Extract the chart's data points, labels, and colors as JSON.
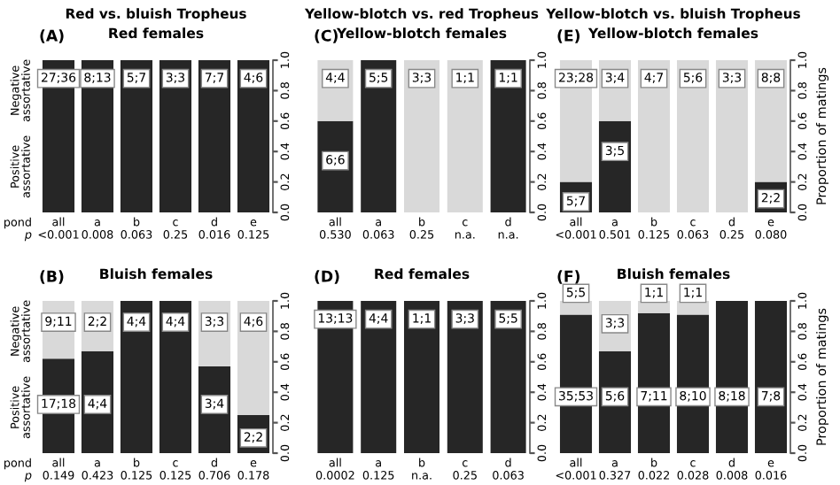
{
  "chart_data": [
    {
      "type": "bar",
      "stacked": true,
      "title": "Red vs. bluish Tropheus",
      "subtitle": "Red females",
      "categories": [
        "all",
        "a",
        "b",
        "c",
        "d",
        "e"
      ],
      "series": [
        {
          "color": "#262626",
          "values": [
            1,
            1,
            1,
            1,
            1,
            1
          ]
        },
        {
          "color": "#d9d9d9",
          "values": [
            0,
            0,
            0,
            0,
            0,
            0
          ]
        }
      ],
      "ylim": [
        0,
        1
      ],
      "yticks": [
        {
          "value": 0,
          "label": "0.0"
        },
        {
          "value": 0.2,
          "label": "0.2"
        },
        {
          "value": 0.4,
          "label": "0.4"
        },
        {
          "value": 0.6,
          "label": "0.6"
        },
        {
          "value": 0.8,
          "label": "0.8"
        },
        {
          "value": 1,
          "label": "1.0"
        }
      ],
      "annotations": [
        "(A)",
        "Negative\nassortative",
        "Positive\nassortative",
        "pond",
        "p",
        {
          "text": "27;36",
          "x": "all",
          "y": 0.88
        },
        {
          "text": "8;13",
          "x": "a",
          "y": 0.88
        },
        {
          "text": "5;7",
          "x": "b",
          "y": 0.88
        },
        {
          "text": "3;3",
          "x": "c",
          "y": 0.88
        },
        {
          "text": "7;7",
          "x": "d",
          "y": 0.88
        },
        {
          "text": "4;6",
          "x": "e",
          "y": 0.88
        },
        "<0.001",
        "0.008",
        "0.063",
        "0.25",
        "0.016",
        "0.125"
      ]
    },
    {
      "type": "bar",
      "stacked": true,
      "title": "Yellow-blotch vs. red Tropheus",
      "subtitle": "Yellow-blotch females",
      "categories": [
        "all",
        "a",
        "b",
        "c",
        "d"
      ],
      "series": [
        {
          "color": "#262626",
          "values": [
            0.6,
            1,
            0,
            0,
            1
          ]
        },
        {
          "color": "#d9d9d9",
          "values": [
            0.4,
            0,
            1,
            1,
            0
          ]
        }
      ],
      "ylim": [
        0,
        1
      ],
      "yticks": [
        {
          "value": 0,
          "label": "0.0"
        },
        {
          "value": 0.2,
          "label": "0.2"
        },
        {
          "value": 0.4,
          "label": "0.4"
        },
        {
          "value": 0.6,
          "label": "0.6"
        },
        {
          "value": 0.8,
          "label": "0.8"
        },
        {
          "value": 1,
          "label": "1.0"
        }
      ],
      "annotations": [
        "(C)",
        {
          "text": "4;4",
          "x": "all",
          "y": 0.88
        },
        {
          "text": "5;5",
          "x": "a",
          "y": 0.88
        },
        {
          "text": "3;3",
          "x": "b",
          "y": 0.88
        },
        {
          "text": "1;1",
          "x": "c",
          "y": 0.88
        },
        {
          "text": "1;1",
          "x": "d",
          "y": 0.88
        },
        {
          "text": "6;6",
          "x": "all",
          "y": 0.34
        },
        "0.530",
        "0.063",
        "0.25",
        "n.a.",
        "n.a."
      ]
    },
    {
      "type": "bar",
      "stacked": true,
      "title": "Yellow-blotch vs. bluish Tropheus",
      "subtitle": "Yellow-blotch females",
      "ylabel": "Proportion of matings",
      "categories": [
        "all",
        "a",
        "b",
        "c",
        "d",
        "e"
      ],
      "series": [
        {
          "color": "#262626",
          "values": [
            0.2,
            0.6,
            0,
            0,
            0,
            0.2
          ]
        },
        {
          "color": "#d9d9d9",
          "values": [
            0.8,
            0.4,
            1,
            1,
            1,
            0.8
          ]
        }
      ],
      "ylim": [
        0,
        1
      ],
      "yticks": [
        {
          "value": 0,
          "label": "0.0"
        },
        {
          "value": 0.2,
          "label": "0.2"
        },
        {
          "value": 0.4,
          "label": "0.4"
        },
        {
          "value": 0.6,
          "label": "0.6"
        },
        {
          "value": 0.8,
          "label": "0.8"
        },
        {
          "value": 1,
          "label": "1.0"
        }
      ],
      "annotations": [
        "(E)",
        {
          "text": "23;28",
          "x": "all",
          "y": 0.88
        },
        {
          "text": "3;4",
          "x": "a",
          "y": 0.88
        },
        {
          "text": "4;7",
          "x": "b",
          "y": 0.88
        },
        {
          "text": "5;6",
          "x": "c",
          "y": 0.88
        },
        {
          "text": "3;3",
          "x": "d",
          "y": 0.88
        },
        {
          "text": "8;8",
          "x": "e",
          "y": 0.88
        },
        {
          "text": "5;7",
          "x": "all",
          "y": 0.07
        },
        {
          "text": "3;5",
          "x": "a",
          "y": 0.4
        },
        {
          "text": "2;2",
          "x": "e",
          "y": 0.09
        },
        "<0.001",
        "0.501",
        "0.125",
        "0.063",
        "0.25",
        "0.080"
      ]
    },
    {
      "type": "bar",
      "stacked": true,
      "subtitle": "Bluish females",
      "categories": [
        "all",
        "a",
        "b",
        "c",
        "d",
        "e"
      ],
      "series": [
        {
          "color": "#262626",
          "values": [
            0.62,
            0.67,
            1,
            1,
            0.57,
            0.25
          ]
        },
        {
          "color": "#d9d9d9",
          "values": [
            0.38,
            0.33,
            0,
            0,
            0.43,
            0.75
          ]
        }
      ],
      "ylim": [
        0,
        1
      ],
      "yticks": [
        {
          "value": 0,
          "label": "0.0"
        },
        {
          "value": 0.2,
          "label": "0.2"
        },
        {
          "value": 0.4,
          "label": "0.4"
        },
        {
          "value": 0.6,
          "label": "0.6"
        },
        {
          "value": 0.8,
          "label": "0.8"
        },
        {
          "value": 1,
          "label": "1.0"
        }
      ],
      "annotations": [
        "(B)",
        "Negative\nassortative",
        "Positive\nassortative",
        "pond",
        "p",
        {
          "text": "9;11",
          "x": "all",
          "y": 0.86
        },
        {
          "text": "2;2",
          "x": "a",
          "y": 0.86
        },
        {
          "text": "4;4",
          "x": "b",
          "y": 0.86
        },
        {
          "text": "4;4",
          "x": "c",
          "y": 0.86
        },
        {
          "text": "3;3",
          "x": "d",
          "y": 0.86
        },
        {
          "text": "4;6",
          "x": "e",
          "y": 0.86
        },
        {
          "text": "17;18",
          "x": "all",
          "y": 0.32
        },
        {
          "text": "4;4",
          "x": "a",
          "y": 0.32
        },
        {
          "text": "3;4",
          "x": "d",
          "y": 0.32
        },
        {
          "text": "2;2",
          "x": "e",
          "y": 0.1
        },
        "0.149",
        "0.423",
        "0.125",
        "0.125",
        "0.706",
        "0.178"
      ]
    },
    {
      "type": "bar",
      "stacked": true,
      "subtitle": "Red females",
      "categories": [
        "all",
        "a",
        "b",
        "c",
        "d"
      ],
      "series": [
        {
          "color": "#262626",
          "values": [
            1,
            1,
            1,
            1,
            1
          ]
        },
        {
          "color": "#d9d9d9",
          "values": [
            0,
            0,
            0,
            0,
            0
          ]
        }
      ],
      "ylim": [
        0,
        1
      ],
      "yticks": [
        {
          "value": 0,
          "label": "0.0"
        },
        {
          "value": 0.2,
          "label": "0.2"
        },
        {
          "value": 0.4,
          "label": "0.4"
        },
        {
          "value": 0.6,
          "label": "0.6"
        },
        {
          "value": 0.8,
          "label": "0.8"
        },
        {
          "value": 1,
          "label": "1.0"
        }
      ],
      "annotations": [
        "(D)",
        {
          "text": "13;13",
          "x": "all",
          "y": 0.88
        },
        {
          "text": "4;4",
          "x": "a",
          "y": 0.88
        },
        {
          "text": "1;1",
          "x": "b",
          "y": 0.88
        },
        {
          "text": "3;3",
          "x": "c",
          "y": 0.88
        },
        {
          "text": "5;5",
          "x": "d",
          "y": 0.88
        },
        "0.0002",
        "0.125",
        "n.a.",
        "0.25",
        "0.063"
      ]
    },
    {
      "type": "bar",
      "stacked": true,
      "subtitle": "Bluish females",
      "ylabel": "Proportion of matings",
      "categories": [
        "all",
        "a",
        "b",
        "c",
        "d",
        "e"
      ],
      "series": [
        {
          "color": "#262626",
          "values": [
            0.91,
            0.67,
            0.92,
            0.91,
            1,
            1
          ]
        },
        {
          "color": "#d9d9d9",
          "values": [
            0.09,
            0.33,
            0.08,
            0.09,
            0,
            0
          ]
        }
      ],
      "ylim": [
        0,
        1
      ],
      "yticks": [
        {
          "value": 0,
          "label": "0.0"
        },
        {
          "value": 0.2,
          "label": "0.2"
        },
        {
          "value": 0.4,
          "label": "0.4"
        },
        {
          "value": 0.6,
          "label": "0.6"
        },
        {
          "value": 0.8,
          "label": "0.8"
        },
        {
          "value": 1,
          "label": "1.0"
        }
      ],
      "annotations": [
        "(F)",
        {
          "text": "5;5",
          "x": "all",
          "y": 1.05
        },
        {
          "text": "3;3",
          "x": "a",
          "y": 0.85
        },
        {
          "text": "1;1",
          "x": "b",
          "y": 1.05
        },
        {
          "text": "1;1",
          "x": "c",
          "y": 1.05
        },
        {
          "text": "35;53",
          "x": "all",
          "y": 0.37
        },
        {
          "text": "5;6",
          "x": "a",
          "y": 0.37
        },
        {
          "text": "7;11",
          "x": "b",
          "y": 0.37
        },
        {
          "text": "8;10",
          "x": "c",
          "y": 0.37
        },
        {
          "text": "8;18",
          "x": "d",
          "y": 0.37
        },
        {
          "text": "7;8",
          "x": "e",
          "y": 0.37
        },
        "<0.001",
        "0.327",
        "0.022",
        "0.028",
        "0.008",
        "0.016"
      ]
    }
  ]
}
